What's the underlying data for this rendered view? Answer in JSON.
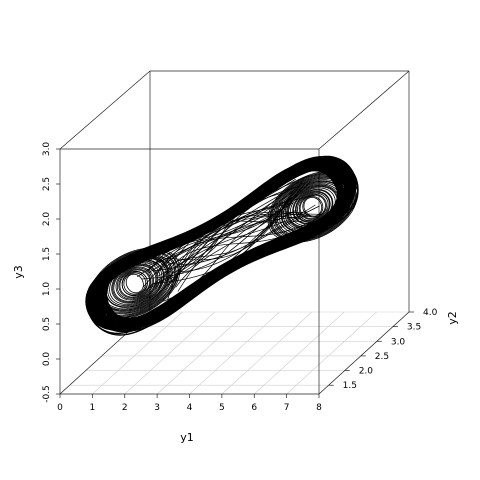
{
  "chart_data": {
    "type": "scatter3d",
    "xlabel": "y1",
    "ylabel": "y2",
    "zlabel": "y3",
    "xlim": [
      0,
      8
    ],
    "ylim": [
      1.2,
      4.0
    ],
    "zlim": [
      -0.5,
      3.0
    ],
    "x_ticks": [
      "0",
      "1",
      "2",
      "3",
      "4",
      "5",
      "6",
      "7",
      "8"
    ],
    "y_ticks": [
      "1.5",
      "2.0",
      "2.5",
      "3.0",
      "3.5",
      "4.0"
    ],
    "z_ticks": [
      "-0.5",
      "0.0",
      "0.5",
      "1.0",
      "1.5",
      "2.0",
      "2.5",
      "3.0"
    ],
    "x_tick_values": [
      0,
      1,
      2,
      3,
      4,
      5,
      6,
      7,
      8
    ],
    "y_tick_values": [
      1.5,
      2.0,
      2.5,
      3.0,
      3.5,
      4.0
    ],
    "z_tick_values": [
      -0.5,
      0.0,
      0.5,
      1.0,
      1.5,
      2.0,
      2.5,
      3.0
    ],
    "grid": true,
    "series": [
      {
        "color": "#000000",
        "type": "line",
        "description_points": [
          [
            2.0,
            1.6,
            0.6
          ],
          [
            1.5,
            1.8,
            1.1
          ],
          [
            2.5,
            2.2,
            1.6
          ],
          [
            4.5,
            2.8,
            2.1
          ],
          [
            6.5,
            3.4,
            2.5
          ],
          [
            7.5,
            3.8,
            2.7
          ],
          [
            7.0,
            3.6,
            2.2
          ],
          [
            5.5,
            3.0,
            1.5
          ],
          [
            3.5,
            2.2,
            1.0
          ],
          [
            2.2,
            1.7,
            0.6
          ]
        ]
      }
    ]
  }
}
